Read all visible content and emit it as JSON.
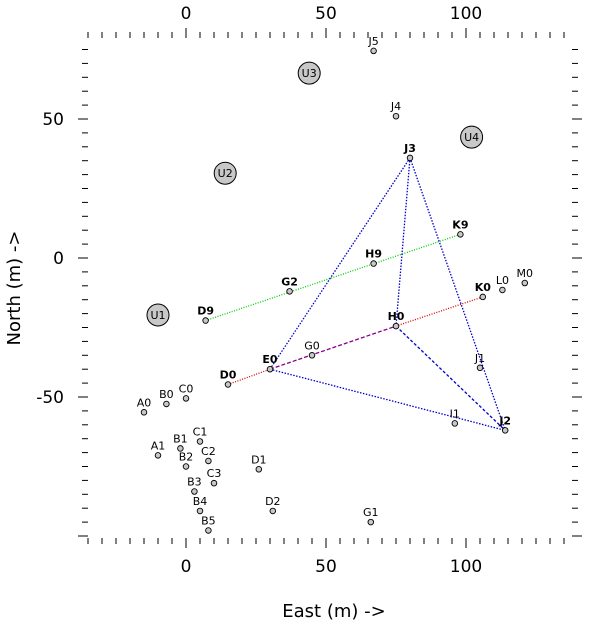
{
  "chart_data": {
    "type": "scatter",
    "xlabel": "East (m) ->",
    "ylabel": "North (m) ->",
    "xlim": [
      -35,
      140
    ],
    "ylim": [
      -100,
      78
    ],
    "x_ticks_major": [
      0,
      50,
      100
    ],
    "y_ticks_major": [
      -50,
      0,
      50
    ],
    "minor_tick_step": 5,
    "grid": false,
    "colors": {
      "point_fill": "#c8c8c8",
      "point_stroke": "#000000",
      "green": "#00cc00",
      "red": "#dd0000",
      "blue": "#0000cc",
      "purple": "#880088"
    },
    "large_markers": [
      {
        "name": "U1",
        "x": -10,
        "y": -20.5
      },
      {
        "name": "U2",
        "x": 14,
        "y": 30.5
      },
      {
        "name": "U3",
        "x": 44,
        "y": 66.5
      },
      {
        "name": "U4",
        "x": 102,
        "y": 43.5
      }
    ],
    "points": [
      {
        "name": "J5",
        "x": 67,
        "y": 74.5,
        "bold": false
      },
      {
        "name": "J4",
        "x": 75,
        "y": 51,
        "bold": false
      },
      {
        "name": "J3",
        "x": 80,
        "y": 36,
        "bold": true
      },
      {
        "name": "K9",
        "x": 98,
        "y": 8.5,
        "bold": true
      },
      {
        "name": "H9",
        "x": 67,
        "y": -2,
        "bold": true
      },
      {
        "name": "G2",
        "x": 37,
        "y": -12,
        "bold": true
      },
      {
        "name": "D9",
        "x": 7,
        "y": -22.5,
        "bold": true
      },
      {
        "name": "K0",
        "x": 106,
        "y": -14,
        "bold": true
      },
      {
        "name": "L0",
        "x": 113,
        "y": -11.5,
        "bold": false
      },
      {
        "name": "M0",
        "x": 121,
        "y": -9,
        "bold": false
      },
      {
        "name": "H0",
        "x": 75,
        "y": -24.5,
        "bold": true
      },
      {
        "name": "G0",
        "x": 45,
        "y": -35,
        "bold": false
      },
      {
        "name": "E0",
        "x": 30,
        "y": -40,
        "bold": true
      },
      {
        "name": "D0",
        "x": 15,
        "y": -45.5,
        "bold": true
      },
      {
        "name": "J1",
        "x": 105,
        "y": -39.5,
        "bold": false
      },
      {
        "name": "I1",
        "x": 96,
        "y": -59.5,
        "bold": false
      },
      {
        "name": "J2",
        "x": 114,
        "y": -62,
        "bold": true
      },
      {
        "name": "A0",
        "x": -15,
        "y": -55.5,
        "bold": false
      },
      {
        "name": "B0",
        "x": -7,
        "y": -52.5,
        "bold": false
      },
      {
        "name": "C0",
        "x": 0,
        "y": -50.5,
        "bold": false
      },
      {
        "name": "A1",
        "x": -10,
        "y": -71,
        "bold": false
      },
      {
        "name": "B1",
        "x": -2,
        "y": -68.5,
        "bold": false
      },
      {
        "name": "C1",
        "x": 5,
        "y": -66,
        "bold": false
      },
      {
        "name": "B2",
        "x": 0,
        "y": -75,
        "bold": false
      },
      {
        "name": "C2",
        "x": 8,
        "y": -73,
        "bold": false
      },
      {
        "name": "B3",
        "x": 3,
        "y": -84,
        "bold": false
      },
      {
        "name": "C3",
        "x": 10,
        "y": -81,
        "bold": false
      },
      {
        "name": "D1",
        "x": 26,
        "y": -76,
        "bold": false
      },
      {
        "name": "B4",
        "x": 5,
        "y": -91,
        "bold": false
      },
      {
        "name": "D2",
        "x": 31,
        "y": -91,
        "bold": false
      },
      {
        "name": "B5",
        "x": 8,
        "y": -98,
        "bold": false
      },
      {
        "name": "G1",
        "x": 66,
        "y": -95,
        "bold": false
      }
    ],
    "segments": [
      {
        "from": "D9",
        "to": "K9",
        "color": "green",
        "dash": "1,1.5"
      },
      {
        "from": "D0",
        "to": "E0",
        "color": "red",
        "dash": "1,1.5"
      },
      {
        "from": "E0",
        "to": "H0",
        "color": "purple",
        "dash": "4,2"
      },
      {
        "from": "H0",
        "to": "K0",
        "color": "red",
        "dash": "1,1.5"
      },
      {
        "from": "E0",
        "to": "J3",
        "color": "blue",
        "dash": "1.5,1.5"
      },
      {
        "from": "J3",
        "to": "H0",
        "color": "blue",
        "dash": "1.5,1.5"
      },
      {
        "from": "J3",
        "to": "J2",
        "color": "blue",
        "dash": "1.5,1.5"
      },
      {
        "from": "E0",
        "to": "J2",
        "color": "blue",
        "dash": "1.5,1.5"
      },
      {
        "from": "H0",
        "to": "J2",
        "color": "blue",
        "dash": "3,2"
      }
    ]
  }
}
